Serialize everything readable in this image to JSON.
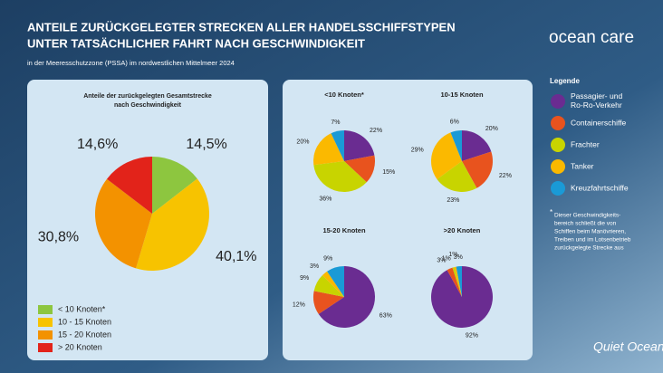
{
  "header": {
    "title_lines": [
      "ANTEILE ZURÜCKGELEGTER STRECKEN ALLER HANDELSSCHIFFSTYPEN",
      "UNTER TATSÄCHLICHER FAHRT NACH GESCHWINDIGKEIT"
    ],
    "subtitle": "in der Meeresschutzzone (PSSA) im nordwestlichen Mittelmeer 2024",
    "logo": "ocean care",
    "footer_logo": "Quiet Oceans"
  },
  "chart_data": [
    {
      "type": "pie",
      "title": "Anteile der zurückgelegten Gesamtstrecke nach Geschwindigkeit",
      "categories": [
        "< 10 Knoten*",
        "10 - 15 Knoten",
        "15 - 20 Knoten",
        "> 20 Knoten"
      ],
      "colors": [
        "#8dc63f",
        "#f7c300",
        "#f39200",
        "#e2231a"
      ],
      "values": [
        14.5,
        40.1,
        30.8,
        14.6
      ],
      "value_labels": [
        "14,5%",
        "40,1%",
        "30,8%",
        "14,6%"
      ]
    },
    {
      "type": "pie",
      "legend_title": "Legende",
      "categories": [
        "Passagier- und Ro-Ro-Verkehr",
        "Containerschiffe",
        "Frachter",
        "Tanker",
        "Kreuzfahrtschiffe"
      ],
      "colors": [
        "#6a2c91",
        "#e8531e",
        "#c8d400",
        "#fbb900",
        "#1a9ad6"
      ],
      "footnote_lines": [
        "Dieser Geschwindigkeits-",
        "bereich schließt die von",
        "Schiffen beim Manövrieren,",
        "Treiben und im Lotsenbetrieb",
        "zurückgelegte Strecke aus"
      ],
      "panels": [
        {
          "title": "<10 Knoten*",
          "values": [
            22,
            15,
            36,
            20,
            7
          ],
          "value_labels": [
            "22%",
            "15%",
            "36%",
            "20%",
            "7%"
          ]
        },
        {
          "title": "10-15 Knoten",
          "values": [
            20,
            22,
            23,
            29,
            6
          ],
          "value_labels": [
            "20%",
            "22%",
            "23%",
            "29%",
            "6%"
          ]
        },
        {
          "title": "15-20 Knoten",
          "values": [
            63,
            12,
            9,
            3,
            9
          ],
          "value_labels": [
            "63%",
            "12%",
            "9%",
            "3%",
            "9%"
          ]
        },
        {
          "title": ">20 Knoten",
          "values": [
            92,
            3,
            1,
            1,
            3
          ],
          "value_labels": [
            "92%",
            "3%",
            "1%",
            "1%",
            "3%"
          ]
        }
      ]
    }
  ]
}
